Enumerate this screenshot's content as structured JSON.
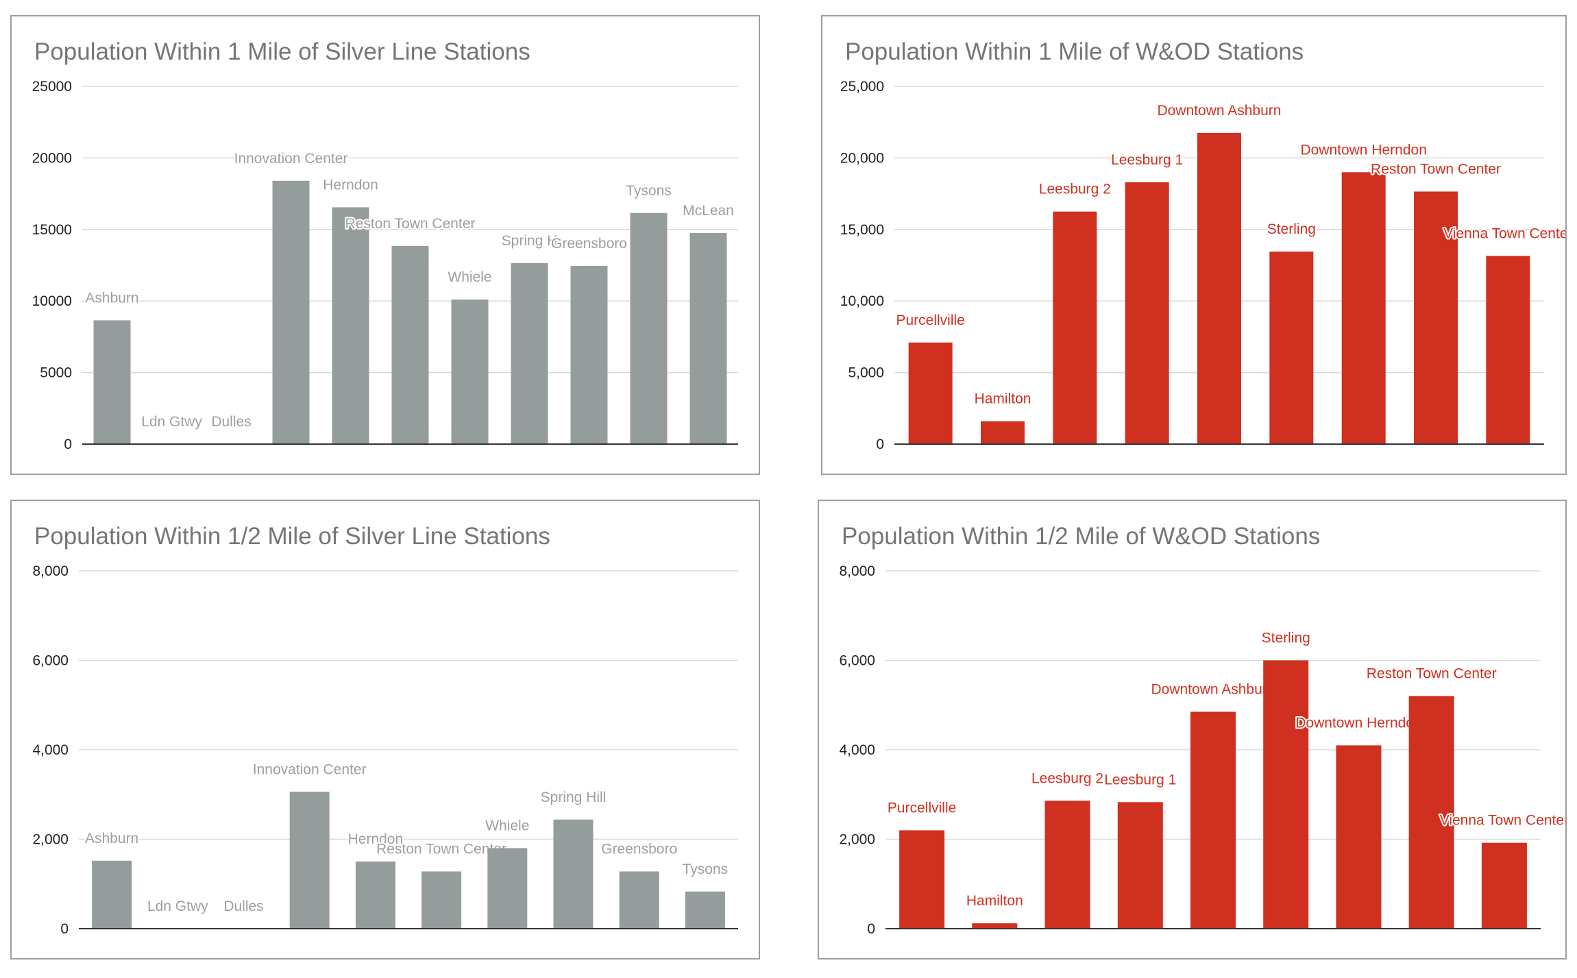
{
  "chart_data": [
    {
      "type": "bar",
      "title": "Population Within 1 Mile of Silver Line Stations",
      "color": "#949c9c",
      "label_color": "#9e9e9e",
      "ylim": [
        0,
        25000
      ],
      "yticks": [
        "0",
        "5000",
        "10000",
        "15000",
        "20000",
        "25000"
      ],
      "tick_values": [
        0,
        5000,
        10000,
        15000,
        20000,
        25000
      ],
      "categories": [
        "Ashburn",
        "Ldn Gtwy",
        "Dulles",
        "Innovation Center",
        "Herndon",
        "Reston Town Center",
        "Whiele",
        "Spring Hill",
        "Greensboro",
        "Tysons",
        "McLean"
      ],
      "values": [
        8650,
        0,
        0,
        18400,
        16550,
        13850,
        10100,
        12650,
        12450,
        16150,
        14750
      ],
      "data_labels": [
        "Ashburn",
        "Ldn Gtwy",
        "Dulles",
        "Innovation Center",
        "Herndon",
        "Reston Town Center",
        "Whiele",
        "Spring H",
        "Greensboro",
        "Tysons",
        "McLean"
      ],
      "xlabel": "",
      "ylabel": ""
    },
    {
      "type": "bar",
      "title": "Population Within 1 Mile of W&OD Stations",
      "color": "#d03020",
      "label_color": "#d03020",
      "ylim": [
        0,
        25000
      ],
      "yticks": [
        "0",
        "5,000",
        "10,000",
        "15,000",
        "20,000",
        "25,000"
      ],
      "tick_values": [
        0,
        5000,
        10000,
        15000,
        20000,
        25000
      ],
      "categories": [
        "Purcellville",
        "Hamilton",
        "Leesburg 2",
        "Leesburg 1",
        "Downtown Ashburn",
        "Sterling",
        "Downtown Herndon",
        "Reston Town Center",
        "Vienna Town Center"
      ],
      "values": [
        7100,
        1600,
        16250,
        18300,
        21750,
        13450,
        19000,
        17650,
        13150
      ],
      "data_labels": [
        "Purcellville",
        "Hamilton",
        "Leesburg 2",
        "Leesburg 1",
        "Downtown Ashburn",
        "Sterling",
        "Downtown Herndon",
        "Reston Town Center",
        "Vienna Town Center"
      ],
      "xlabel": "",
      "ylabel": ""
    },
    {
      "type": "bar",
      "title": "Population Within 1/2 Mile of Silver Line Stations",
      "color": "#949c9c",
      "label_color": "#9e9e9e",
      "ylim": [
        0,
        8000
      ],
      "yticks": [
        "0",
        "2,000",
        "4,000",
        "6,000",
        "8,000"
      ],
      "tick_values": [
        0,
        2000,
        4000,
        6000,
        8000
      ],
      "categories": [
        "Ashburn",
        "Ldn Gtwy",
        "Dulles",
        "Innovation Center",
        "Herndon",
        "Reston Town Center",
        "Whiele",
        "Spring Hill",
        "Greensboro",
        "Tysons"
      ],
      "values": [
        1520,
        0,
        0,
        3060,
        1500,
        1280,
        1800,
        2440,
        1280,
        830
      ],
      "data_labels": [
        "Ashburn",
        "Ldn Gtwy",
        "Dulles",
        "Innovation Center",
        "Herndon",
        "Reston Town Center",
        "Whiele",
        "Spring Hill",
        "Greensboro",
        "Tysons"
      ],
      "xlabel": "",
      "ylabel": ""
    },
    {
      "type": "bar",
      "title": "Population Within 1/2 Mile of W&OD Stations",
      "color": "#d03020",
      "label_color": "#d03020",
      "ylim": [
        0,
        8000
      ],
      "yticks": [
        "0",
        "2,000",
        "4,000",
        "6,000",
        "8,000"
      ],
      "tick_values": [
        0,
        2000,
        4000,
        6000,
        8000
      ],
      "categories": [
        "Purcellville",
        "Hamilton",
        "Leesburg 2",
        "Leesburg 1",
        "Downtown Ashburn",
        "Sterling",
        "Downtown Herndon",
        "Reston Town Center",
        "Vienna Town Center"
      ],
      "values": [
        2200,
        120,
        2860,
        2830,
        4850,
        6000,
        4100,
        5200,
        1920
      ],
      "data_labels": [
        "Purcellville",
        "Hamilton",
        "Leesburg 2",
        "Leesburg 1",
        "Downtown Ashburn",
        "Sterling",
        "Downtown Herndon",
        "Reston Town Center",
        "Vienna Town Center"
      ],
      "xlabel": "",
      "ylabel": ""
    }
  ]
}
